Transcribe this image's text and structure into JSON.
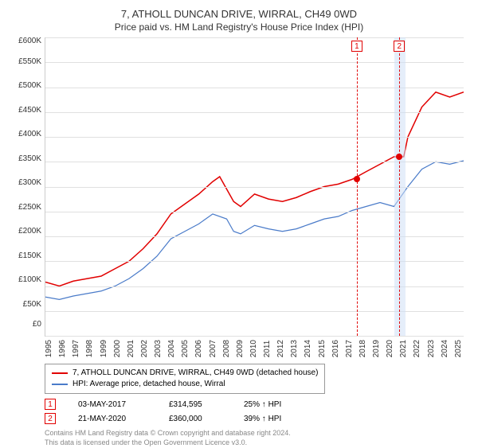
{
  "title": "7, ATHOLL DUNCAN DRIVE, WIRRAL, CH49 0WD",
  "subtitle": "Price paid vs. HM Land Registry's House Price Index (HPI)",
  "chart": {
    "ylim": [
      0,
      600000
    ],
    "ytick_step": 50000,
    "yticks": [
      "£600K",
      "£550K",
      "£500K",
      "£450K",
      "£400K",
      "£350K",
      "£300K",
      "£250K",
      "£200K",
      "£150K",
      "£100K",
      "£50K",
      "£0"
    ],
    "grid_color": "#e0e0e0",
    "background_color": "#ffffff",
    "xYears": [
      1995,
      1996,
      1997,
      1998,
      1999,
      2000,
      2001,
      2002,
      2003,
      2004,
      2005,
      2006,
      2007,
      2008,
      2009,
      2010,
      2011,
      2012,
      2013,
      2014,
      2015,
      2016,
      2017,
      2018,
      2019,
      2020,
      2021,
      2022,
      2023,
      2024,
      2025
    ],
    "series": [
      {
        "name": "red",
        "color": "#e10000",
        "width": 1.5,
        "label": "7, ATHOLL DUNCAN DRIVE, WIRRAL, CH49 0WD (detached house)",
        "points": [
          [
            1995,
            108000
          ],
          [
            1996,
            100000
          ],
          [
            1997,
            110000
          ],
          [
            1998,
            115000
          ],
          [
            1999,
            120000
          ],
          [
            2000,
            135000
          ],
          [
            2001,
            150000
          ],
          [
            2002,
            175000
          ],
          [
            2003,
            205000
          ],
          [
            2004,
            245000
          ],
          [
            2005,
            265000
          ],
          [
            2006,
            285000
          ],
          [
            2007,
            310000
          ],
          [
            2007.5,
            320000
          ],
          [
            2008,
            295000
          ],
          [
            2008.5,
            270000
          ],
          [
            2009,
            260000
          ],
          [
            2010,
            285000
          ],
          [
            2011,
            275000
          ],
          [
            2012,
            270000
          ],
          [
            2013,
            278000
          ],
          [
            2014,
            290000
          ],
          [
            2015,
            300000
          ],
          [
            2016,
            305000
          ],
          [
            2017,
            314595
          ],
          [
            2018,
            330000
          ],
          [
            2019,
            345000
          ],
          [
            2020,
            360000
          ],
          [
            2020.7,
            360000
          ],
          [
            2021,
            400000
          ],
          [
            2022,
            460000
          ],
          [
            2023,
            490000
          ],
          [
            2024,
            480000
          ],
          [
            2025,
            490000
          ]
        ]
      },
      {
        "name": "blue",
        "color": "#4a7bc9",
        "width": 1.2,
        "label": "HPI: Average price, detached house, Wirral",
        "points": [
          [
            1995,
            78000
          ],
          [
            1996,
            73000
          ],
          [
            1997,
            80000
          ],
          [
            1998,
            85000
          ],
          [
            1999,
            90000
          ],
          [
            2000,
            100000
          ],
          [
            2001,
            115000
          ],
          [
            2002,
            135000
          ],
          [
            2003,
            160000
          ],
          [
            2004,
            195000
          ],
          [
            2005,
            210000
          ],
          [
            2006,
            225000
          ],
          [
            2007,
            245000
          ],
          [
            2008,
            235000
          ],
          [
            2008.5,
            210000
          ],
          [
            2009,
            205000
          ],
          [
            2010,
            222000
          ],
          [
            2011,
            215000
          ],
          [
            2012,
            210000
          ],
          [
            2013,
            215000
          ],
          [
            2014,
            225000
          ],
          [
            2015,
            235000
          ],
          [
            2016,
            240000
          ],
          [
            2017,
            252000
          ],
          [
            2018,
            260000
          ],
          [
            2019,
            268000
          ],
          [
            2020,
            260000
          ],
          [
            2021,
            300000
          ],
          [
            2022,
            335000
          ],
          [
            2023,
            350000
          ],
          [
            2024,
            345000
          ],
          [
            2025,
            352000
          ]
        ]
      }
    ],
    "marker_band": {
      "start": 2020,
      "end": 2020.8,
      "color": "#cfe0f5"
    },
    "markers": [
      {
        "num": "1",
        "x": 2017.34,
        "y": 314595
      },
      {
        "num": "2",
        "x": 2020.39,
        "y": 360000
      }
    ]
  },
  "sales": [
    {
      "num": "1",
      "date": "03-MAY-2017",
      "price": "£314,595",
      "hpi": "25% ↑ HPI"
    },
    {
      "num": "2",
      "date": "21-MAY-2020",
      "price": "£360,000",
      "hpi": "39% ↑ HPI"
    }
  ],
  "footer_line1": "Contains HM Land Registry data © Crown copyright and database right 2024.",
  "footer_line2": "This data is licensed under the Open Government Licence v3.0."
}
